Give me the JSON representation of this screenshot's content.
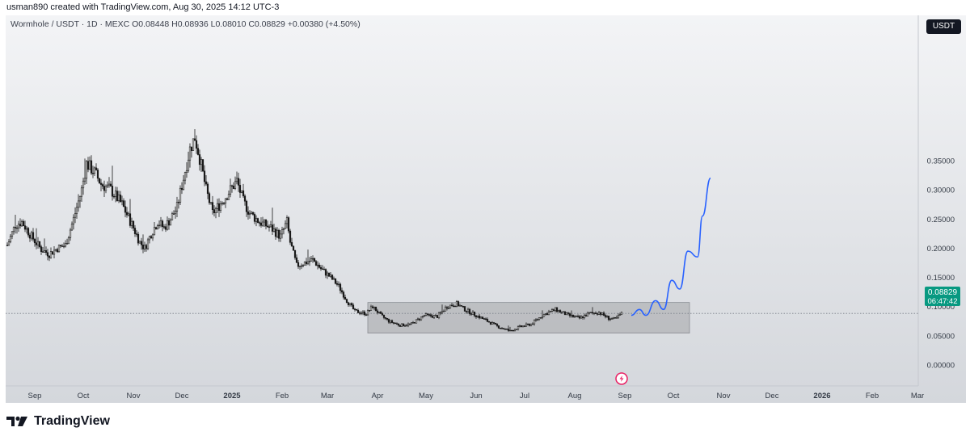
{
  "header": {
    "created_by": "usman890 created with TradingView.com, Aug 30, 2025 14:12 UTC-3",
    "symbol_info": "Wormhole / USDT · 1D · MEXC  O0.08448  H0.08936  L0.08010  C0.08829  +0.00380 (+4.50%)",
    "currency_label": "USDT"
  },
  "brand": {
    "name": "TradingView",
    "icon": "tradingview-logo-icon"
  },
  "colors": {
    "candle_up": "#1a1a1a",
    "candle_down": "#1a1a1a",
    "projection": "#2962ff",
    "range_box": "rgba(110,110,110,0.28)",
    "price_label_bg": "#089981",
    "price_line": "#7a7f89"
  },
  "price_label": {
    "value": "0.08829",
    "countdown": "06:47:42"
  },
  "alert_icon": "lightning-icon",
  "chart_data": {
    "type": "candlestick",
    "title": "Wormhole / USDT · 1D · MEXC",
    "y_range": [
      -0.02,
      0.41
    ],
    "y_ticks": [
      "0.35000",
      "0.30000",
      "0.25000",
      "0.20000",
      "0.15000",
      "0.10000",
      "0.05000",
      "0.00000"
    ],
    "y_tick_values": [
      0.35,
      0.3,
      0.25,
      0.2,
      0.15,
      0.1,
      0.05,
      0.0
    ],
    "x_ticks": [
      "Sep",
      "Oct",
      "Nov",
      "Dec",
      "2025",
      "Feb",
      "Mar",
      "Apr",
      "May",
      "Jun",
      "Jul",
      "Aug",
      "Sep",
      "Oct",
      "Nov",
      "Dec",
      "2026",
      "Feb",
      "Mar"
    ],
    "x_tick_dates": [
      "2024-09-01",
      "2024-10-01",
      "2024-11-01",
      "2024-12-01",
      "2025-01-01",
      "2025-02-01",
      "2025-03-01",
      "2025-04-01",
      "2025-05-01",
      "2025-06-01",
      "2025-07-01",
      "2025-08-01",
      "2025-09-01",
      "2025-10-01",
      "2025-11-01",
      "2025-12-01",
      "2026-01-01",
      "2026-02-01",
      "2026-03-01"
    ],
    "x_start": "2024-08-15",
    "close_path": [
      [
        "2024-08-15",
        0.205
      ],
      [
        "2024-08-20",
        0.24
      ],
      [
        "2024-08-24",
        0.245
      ],
      [
        "2024-08-30",
        0.22
      ],
      [
        "2024-09-05",
        0.198
      ],
      [
        "2024-09-10",
        0.19
      ],
      [
        "2024-09-15",
        0.2
      ],
      [
        "2024-09-20",
        0.205
      ],
      [
        "2024-09-25",
        0.25
      ],
      [
        "2024-09-30",
        0.3
      ],
      [
        "2024-10-03",
        0.345
      ],
      [
        "2024-10-08",
        0.33
      ],
      [
        "2024-10-12",
        0.31
      ],
      [
        "2024-10-18",
        0.3
      ],
      [
        "2024-10-25",
        0.275
      ],
      [
        "2024-11-01",
        0.235
      ],
      [
        "2024-11-05",
        0.21
      ],
      [
        "2024-11-08",
        0.2
      ],
      [
        "2024-11-12",
        0.225
      ],
      [
        "2024-11-16",
        0.245
      ],
      [
        "2024-11-20",
        0.235
      ],
      [
        "2024-11-24",
        0.25
      ],
      [
        "2024-11-28",
        0.27
      ],
      [
        "2024-12-02",
        0.32
      ],
      [
        "2024-12-06",
        0.37
      ],
      [
        "2024-12-09",
        0.39
      ],
      [
        "2024-12-12",
        0.355
      ],
      [
        "2024-12-16",
        0.3
      ],
      [
        "2024-12-20",
        0.26
      ],
      [
        "2024-12-26",
        0.28
      ],
      [
        "2024-12-31",
        0.3
      ],
      [
        "2025-01-04",
        0.315
      ],
      [
        "2025-01-08",
        0.28
      ],
      [
        "2025-01-12",
        0.26
      ],
      [
        "2025-01-18",
        0.245
      ],
      [
        "2025-01-25",
        0.235
      ],
      [
        "2025-01-31",
        0.22
      ],
      [
        "2025-02-04",
        0.245
      ],
      [
        "2025-02-06",
        0.21
      ],
      [
        "2025-02-10",
        0.17
      ],
      [
        "2025-02-15",
        0.175
      ],
      [
        "2025-02-20",
        0.18
      ],
      [
        "2025-02-25",
        0.165
      ],
      [
        "2025-03-03",
        0.15
      ],
      [
        "2025-03-08",
        0.135
      ],
      [
        "2025-03-13",
        0.11
      ],
      [
        "2025-03-18",
        0.092
      ],
      [
        "2025-03-25",
        0.088
      ],
      [
        "2025-03-29",
        0.1
      ],
      [
        "2025-04-03",
        0.085
      ],
      [
        "2025-04-08",
        0.075
      ],
      [
        "2025-04-15",
        0.068
      ],
      [
        "2025-04-22",
        0.07
      ],
      [
        "2025-04-30",
        0.085
      ],
      [
        "2025-05-08",
        0.083
      ],
      [
        "2025-05-14",
        0.1
      ],
      [
        "2025-05-20",
        0.105
      ],
      [
        "2025-05-25",
        0.095
      ],
      [
        "2025-06-01",
        0.085
      ],
      [
        "2025-06-08",
        0.075
      ],
      [
        "2025-06-15",
        0.065
      ],
      [
        "2025-06-22",
        0.058
      ],
      [
        "2025-06-28",
        0.065
      ],
      [
        "2025-07-05",
        0.07
      ],
      [
        "2025-07-12",
        0.085
      ],
      [
        "2025-07-20",
        0.095
      ],
      [
        "2025-07-28",
        0.085
      ],
      [
        "2025-08-04",
        0.08
      ],
      [
        "2025-08-10",
        0.088
      ],
      [
        "2025-08-16",
        0.09
      ],
      [
        "2025-08-22",
        0.08
      ],
      [
        "2025-08-26",
        0.078
      ],
      [
        "2025-08-30",
        0.088
      ]
    ],
    "annotations": {
      "range_box": {
        "start": "2025-03-26",
        "end": "2025-10-11",
        "top": 0.107,
        "bottom": 0.0545
      },
      "current_price": 0.08829,
      "projection": [
        [
          "2025-09-05",
          0.085
        ],
        [
          "2025-09-10",
          0.095
        ],
        [
          "2025-09-14",
          0.085
        ],
        [
          "2025-09-20",
          0.11
        ],
        [
          "2025-09-25",
          0.095
        ],
        [
          "2025-09-30",
          0.145
        ],
        [
          "2025-10-05",
          0.13
        ],
        [
          "2025-10-10",
          0.195
        ],
        [
          "2025-10-16",
          0.185
        ],
        [
          "2025-10-19",
          0.255
        ],
        [
          "2025-10-24",
          0.32
        ]
      ]
    },
    "grid": false
  }
}
